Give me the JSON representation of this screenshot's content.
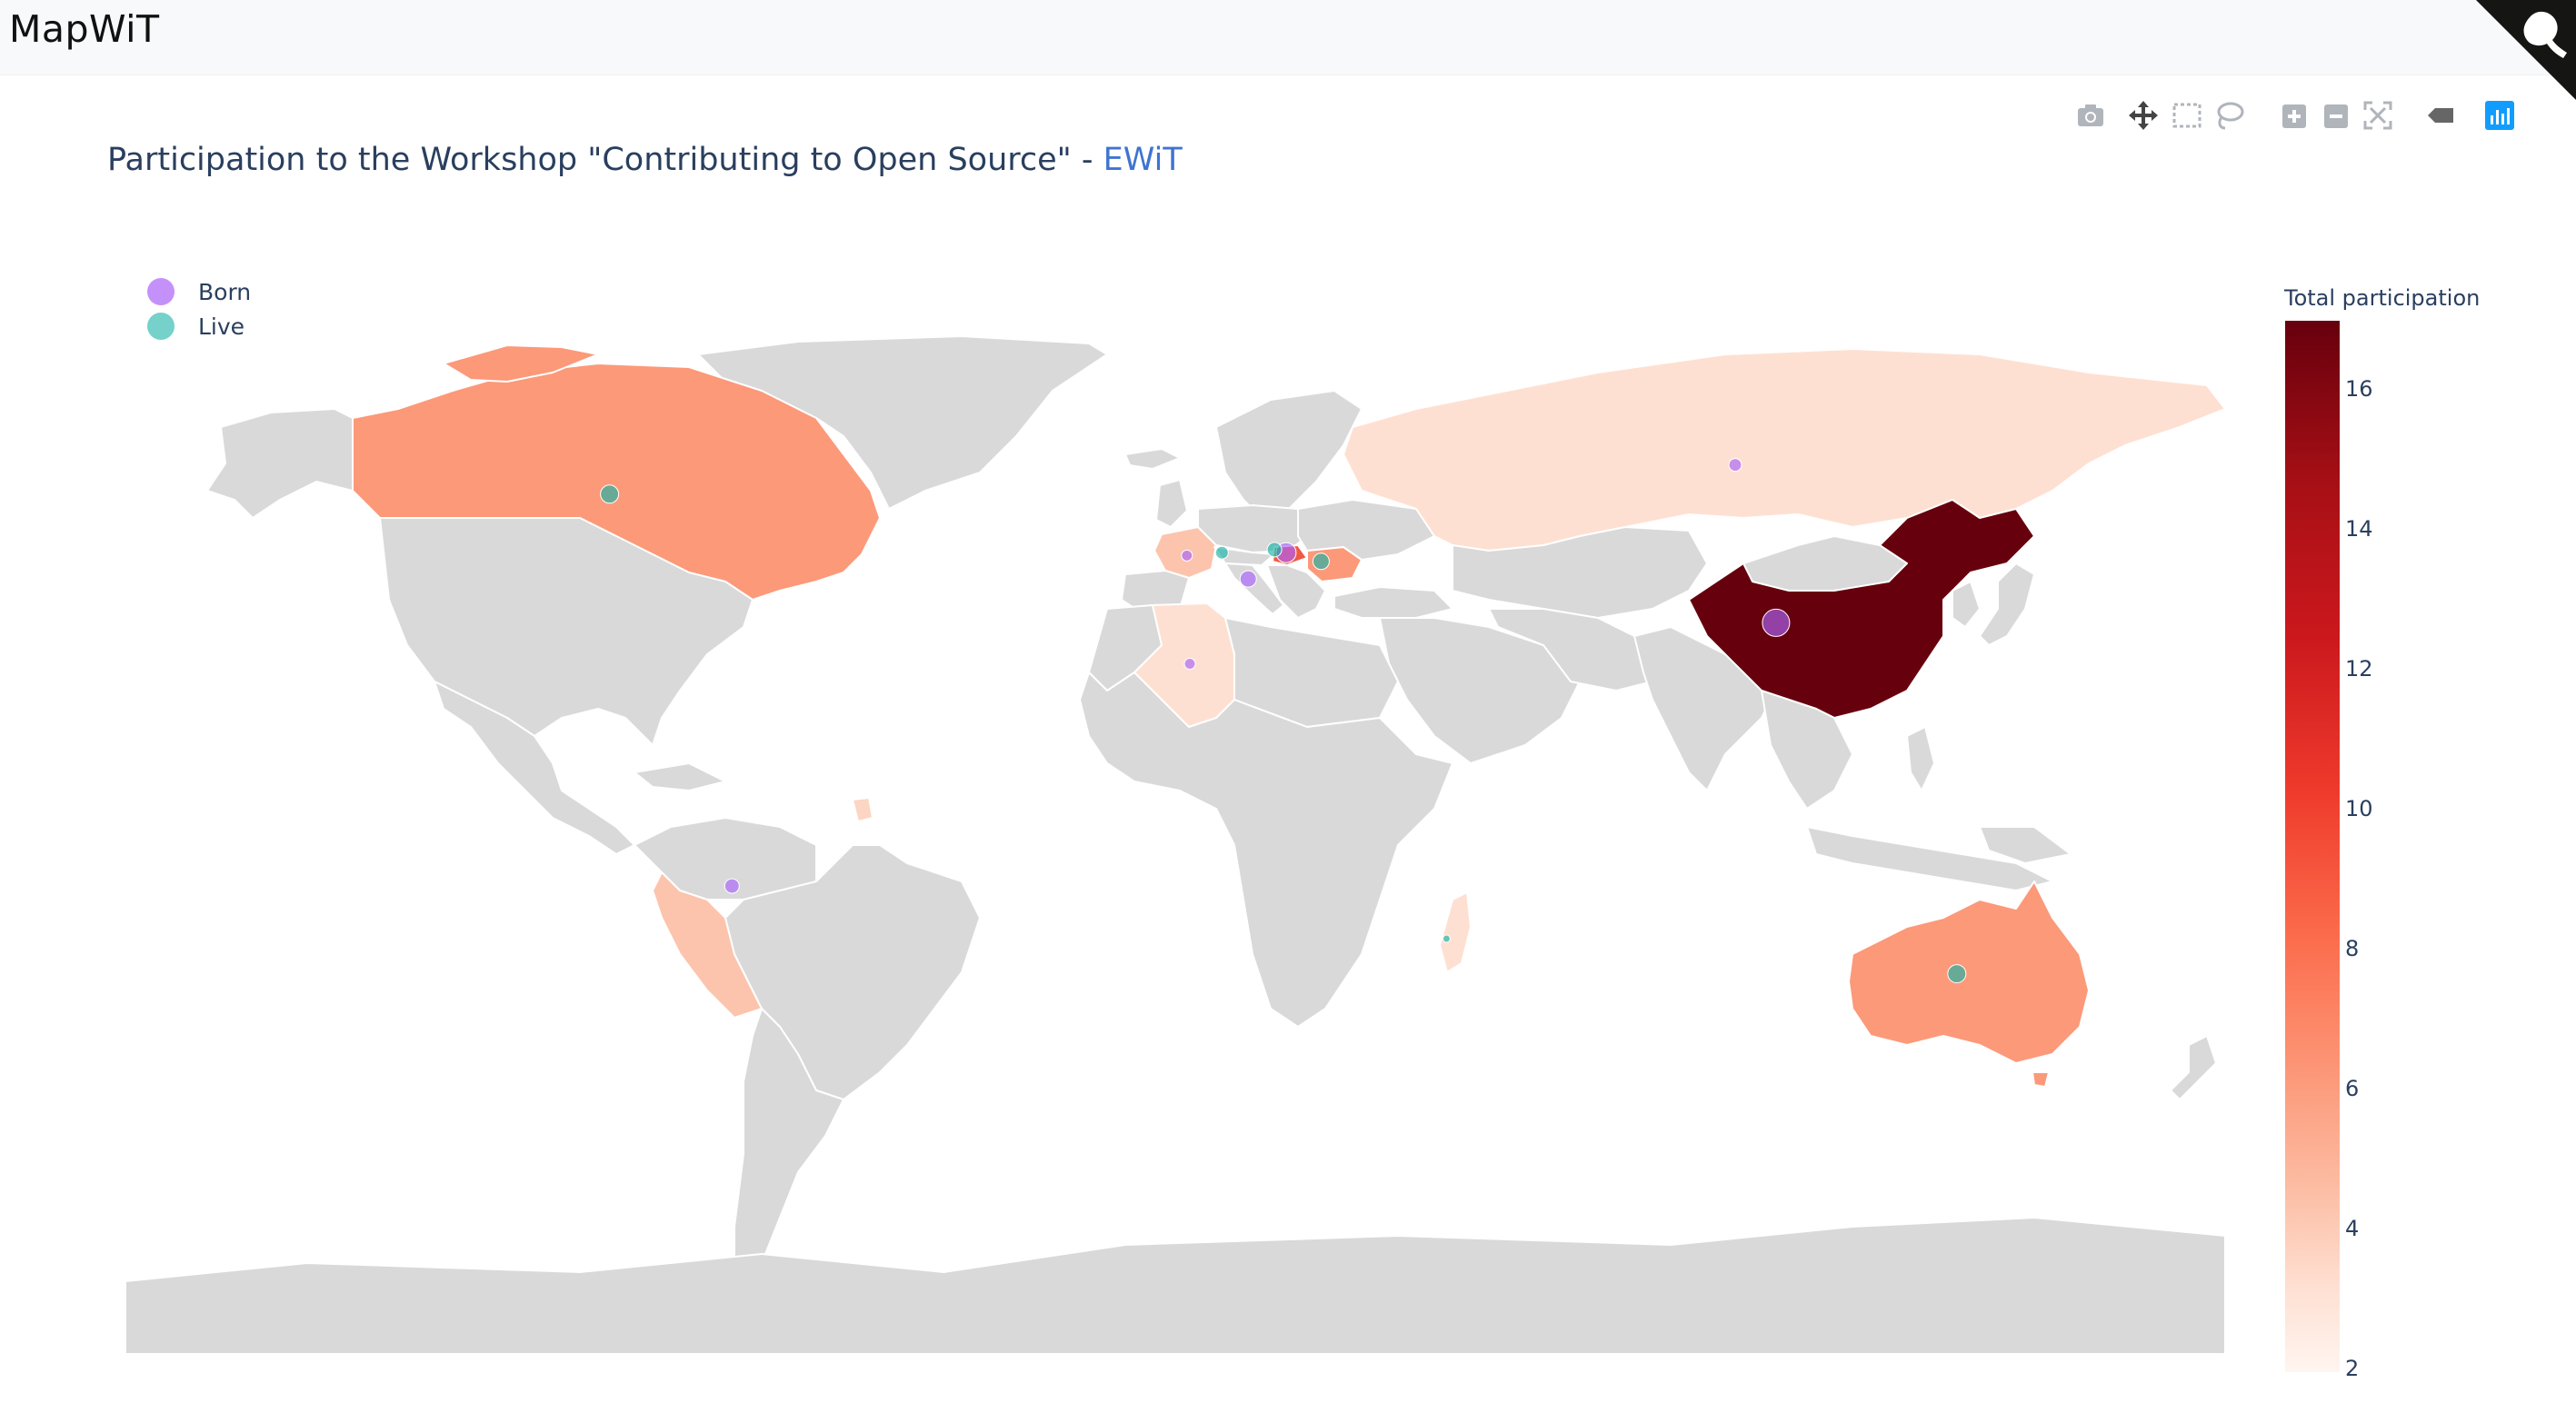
{
  "app": {
    "brand": "MapWiT"
  },
  "modebar": {
    "icons": [
      "camera-icon",
      "pan-icon",
      "box-select-icon",
      "lasso-select-icon",
      "zoom-in-icon",
      "zoom-out-icon",
      "reset-scale-icon",
      "hover-icon",
      "plotly-logo-icon"
    ]
  },
  "chart": {
    "title_prefix": "Participation to the Workshop \"Contributing to Open Source\" - ",
    "title_link": "EWiT",
    "legend": [
      {
        "label": "Born",
        "color": "#ab63fa"
      },
      {
        "label": "Live",
        "color": "#19b3a6"
      }
    ],
    "colorbar": {
      "title": "Total participation",
      "ticks": [
        "16",
        "14",
        "12",
        "10",
        "8",
        "6",
        "4",
        "2"
      ]
    }
  },
  "chart_data": {
    "type": "choropleth+scattergeo",
    "projection": "equirectangular",
    "colorscale": "Reds",
    "color_range": [
      2,
      17
    ],
    "choropleth": [
      {
        "location": "China",
        "value": 17
      },
      {
        "location": "Canada",
        "value": 7
      },
      {
        "location": "Australia",
        "value": 7
      },
      {
        "location": "Romania",
        "value": 7
      },
      {
        "location": "Hungary",
        "value": 9
      },
      {
        "location": "France",
        "value": 4
      },
      {
        "location": "Peru",
        "value": 4
      },
      {
        "location": "Russia",
        "value": 3
      },
      {
        "location": "Algeria",
        "value": 3
      },
      {
        "location": "Madagascar",
        "value": 3
      },
      {
        "location": "French Guiana",
        "value": 4
      }
    ],
    "markers": [
      {
        "location": "Canada",
        "lon": -97,
        "lat": 57,
        "series": "Live",
        "size": 10
      },
      {
        "location": "Peru",
        "lon": -76,
        "lat": -10,
        "series": "Born",
        "size": 8
      },
      {
        "location": "France",
        "lon": 2,
        "lat": 46.5,
        "series": "Born",
        "size": 6
      },
      {
        "location": "Switzerland",
        "lon": 8,
        "lat": 47,
        "series": "Live",
        "size": 7
      },
      {
        "location": "Italy",
        "lon": 12.5,
        "lat": 42.5,
        "series": "Born",
        "size": 9
      },
      {
        "location": "Hungary",
        "lon": 19,
        "lat": 47,
        "series": "Born",
        "size": 11
      },
      {
        "location": "Austria",
        "lon": 17,
        "lat": 47.5,
        "series": "Live",
        "size": 8
      },
      {
        "location": "Romania",
        "lon": 25,
        "lat": 45.5,
        "series": "Live",
        "size": 9
      },
      {
        "location": "Algeria",
        "lon": 2.5,
        "lat": 28,
        "series": "Born",
        "size": 6
      },
      {
        "location": "Russia",
        "lon": 96,
        "lat": 62,
        "series": "Born",
        "size": 7
      },
      {
        "location": "China",
        "lon": 103,
        "lat": 35,
        "series": "Born",
        "size": 15
      },
      {
        "location": "Madagascar",
        "lon": 46.5,
        "lat": -19,
        "series": "Live",
        "size": 4
      },
      {
        "location": "Australia",
        "lon": 134,
        "lat": -25,
        "series": "Live",
        "size": 10
      }
    ]
  }
}
